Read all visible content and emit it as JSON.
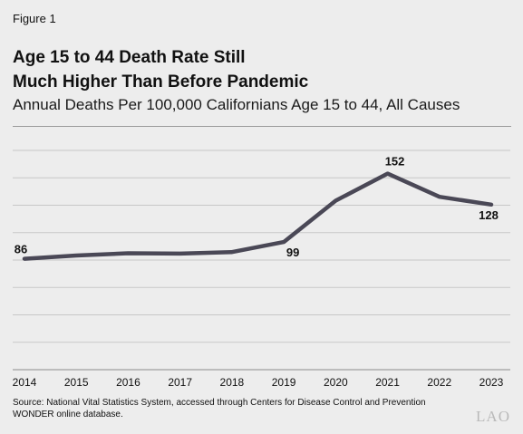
{
  "figure_label": "Figure 1",
  "title_line1": "Age 15 to 44 Death Rate Still",
  "title_line2": "Much Higher Than Before Pandemic",
  "subtitle": "Annual Deaths Per 100,000 Californians Age 15 to 44, All Causes",
  "source_line1": "Source: National Vital Statistics System, accessed through Centers for Disease Control and Prevention",
  "source_line2": "WONDER online database.",
  "logo": "LAO",
  "colors": {
    "line": "#4a4856",
    "grid": "#c8c8c8",
    "background": "#ededed"
  },
  "chart_data": {
    "type": "line",
    "x": [
      "2014",
      "2015",
      "2016",
      "2017",
      "2018",
      "2019",
      "2020",
      "2021",
      "2022",
      "2023"
    ],
    "values": [
      86,
      88.5,
      90.3,
      90,
      91.2,
      99,
      131,
      152,
      134,
      128
    ],
    "data_labels": [
      {
        "index": 0,
        "text": "86"
      },
      {
        "index": 5,
        "text": "99"
      },
      {
        "index": 7,
        "text": "152"
      },
      {
        "index": 9,
        "text": "128"
      }
    ],
    "ylim": [
      0,
      170
    ],
    "grid": true,
    "legend": "none"
  }
}
